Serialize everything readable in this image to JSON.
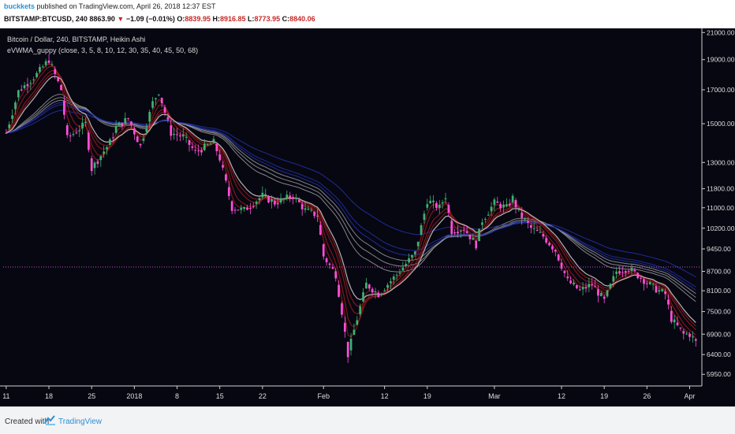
{
  "header": {
    "author": "buckkets",
    "published_text": " published on TradingView.com, April 26, 2018 12:37 EST",
    "symbol": "BITSTAMP:BTCUSD, 240",
    "last": "8863.90",
    "arrow": "▼",
    "change": "−1.09 (−0.01%)",
    "o_label": "O:",
    "o_value": "8839.95",
    "h_label": "H:",
    "h_value": "8916.85",
    "l_label": "L:",
    "l_value": "8773.95",
    "c_label": "C:",
    "c_value": "8840.06"
  },
  "legend": {
    "line1": "Bitcoin / Dollar, 240, BITSTAMP, Heikin Ashi",
    "line2": "eVWMA_guppy (close, 3, 5, 8, 10, 12, 30, 35, 40, 45, 50, 68)"
  },
  "footer": {
    "created_with": "Created with",
    "brand": "TradingView"
  },
  "colors": {
    "background": "#070712",
    "candle_up": "#3cb371",
    "candle_down": "#ff4fd8",
    "fast_band": "#8b1a1a",
    "slow_band": "#1a2a9a",
    "price_line": "#c050c0"
  },
  "chart_data": {
    "type": "candlestick",
    "y_scale": "log",
    "ylim": [
      5700,
      21200
    ],
    "y_ticks": [
      "21000.00",
      "19000.00",
      "17000.00",
      "15000.00",
      "13000.00",
      "11800.00",
      "11000.00",
      "10200.00",
      "9450.00",
      "8700.00",
      "8100.00",
      "7500.00",
      "6900.00",
      "6400.00",
      "5950.00"
    ],
    "y_tick_values": [
      21000,
      19000,
      17000,
      15000,
      13000,
      11800,
      11000,
      10200,
      9450,
      8700,
      8100,
      7500,
      6900,
      6400,
      5950
    ],
    "x_ticks": [
      "11",
      "18",
      "25",
      "2018",
      "8",
      "15",
      "22",
      "Feb",
      "12",
      "19",
      "Mar",
      "12",
      "19",
      "26",
      "Apr"
    ],
    "x_tick_days": [
      0,
      7,
      14,
      21,
      28,
      35,
      42,
      52,
      62,
      69,
      80,
      91,
      98,
      105,
      112
    ],
    "x_range_days": [
      -0.5,
      114
    ],
    "price_line": 8840,
    "trend": {
      "days": [
        0,
        2,
        5,
        7,
        9,
        10,
        13,
        14,
        17,
        18,
        20,
        22,
        24,
        25,
        27,
        29,
        31,
        34,
        35,
        37,
        39,
        42,
        44,
        47,
        49,
        51,
        52,
        54,
        55,
        56,
        57,
        59,
        61,
        64,
        67,
        69,
        71,
        72,
        73,
        75,
        77,
        78,
        80,
        82,
        83,
        84,
        85,
        86,
        88,
        90,
        92,
        94,
        96,
        98,
        100,
        102,
        104,
        106,
        108,
        109,
        111,
        112,
        113
      ],
      "values": [
        14500,
        16900,
        18000,
        19000,
        17000,
        14200,
        15000,
        12700,
        14000,
        14800,
        15300,
        13800,
        16200,
        16900,
        14500,
        14300,
        13500,
        14000,
        13200,
        11000,
        10900,
        11500,
        11200,
        11500,
        10900,
        10700,
        9200,
        8600,
        7500,
        6400,
        7000,
        8300,
        8000,
        8600,
        9300,
        11300,
        11000,
        11500,
        10100,
        10200,
        9600,
        10500,
        11200,
        11000,
        11400,
        10800,
        10500,
        10200,
        9900,
        9400,
        8400,
        8100,
        8300,
        7800,
        8700,
        8800,
        8500,
        8200,
        8000,
        7300,
        6900,
        6900,
        6700
      ],
      "volatility": 0.028
    },
    "ribbons": {
      "fast_spans": [
        3,
        5,
        8,
        10,
        12
      ],
      "slow_spans": [
        30,
        35,
        40,
        45,
        50,
        68
      ]
    }
  }
}
